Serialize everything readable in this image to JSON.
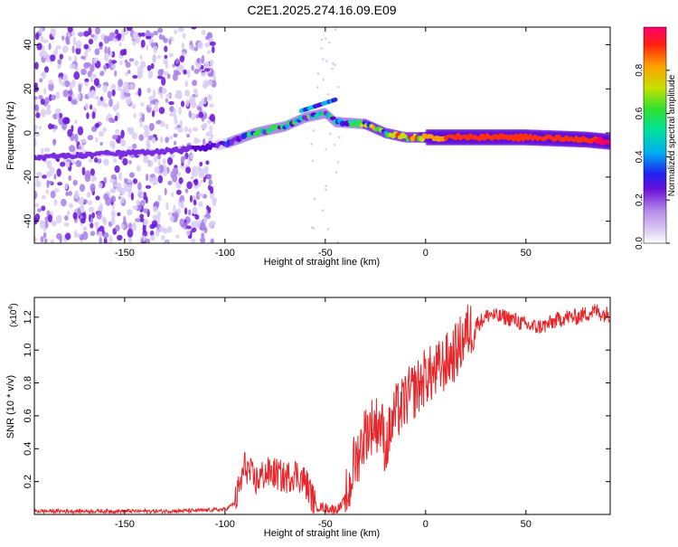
{
  "figure_title": "C2E1.2025.274.16.09.E09",
  "colorbar": {
    "label": "Normalized spectral amplitude",
    "ticks": [
      "0.0",
      "0.2",
      "0.4",
      "0.6",
      "0.8"
    ]
  },
  "chart_data": [
    {
      "type": "heatmap",
      "title": "C2E1.2025.274.16.09.E09",
      "xlabel": "Height of straight line (km)",
      "ylabel": "Frequency (Hz)",
      "xlim": [
        -195,
        92
      ],
      "ylim": [
        -50,
        48
      ],
      "xticks": [
        -150,
        -100,
        -50,
        0,
        50
      ],
      "yticks": [
        -40,
        -20,
        0,
        20,
        40
      ],
      "zlabel": "Normalized spectral amplitude",
      "zlim": [
        0,
        1
      ],
      "colormap": [
        "#ffffff",
        "#d9ccf5",
        "#a77ee8",
        "#7a2ce0",
        "#5a00d8",
        "#1f2cf0",
        "#00b4f0",
        "#00e0a0",
        "#30e040",
        "#c8e000",
        "#ffa000",
        "#ff3010",
        "#ff0060"
      ],
      "ridge": {
        "x": [
          -195,
          -170,
          -150,
          -140,
          -125,
          -115,
          -100,
          -85,
          -70,
          -60,
          -50,
          -45,
          -30,
          -20,
          -10,
          0,
          20,
          50,
          80,
          92
        ],
        "frequency_hz": [
          -11,
          -10,
          -9,
          -9,
          -8,
          -7,
          -5,
          0,
          3,
          7,
          9,
          5,
          4,
          0,
          -2,
          -2,
          -2,
          -2,
          -3,
          -4
        ],
        "amplitude": [
          0.2,
          0.2,
          0.2,
          0.15,
          0.2,
          0.3,
          0.35,
          0.45,
          0.55,
          0.5,
          0.45,
          0.5,
          0.6,
          0.65,
          0.8,
          0.85,
          0.9,
          0.92,
          0.95,
          0.97
        ]
      },
      "noise_region_x": [
        -195,
        -105
      ]
    },
    {
      "type": "line",
      "title": "",
      "xlabel": "Height of straight line (km)",
      "ylabel": "SNR (10 * v/v)",
      "exponent_label": "(x10",
      "exponent_value": "4",
      "exponent_close": ")",
      "xlim": [
        -195,
        92
      ],
      "ylim": [
        0,
        1.32
      ],
      "xticks": [
        -150,
        -100,
        -50,
        0,
        50
      ],
      "yticks": [
        "0.2",
        "0.4",
        "0.6",
        "0.8",
        "1.0",
        "1.2"
      ],
      "color": "#e8262a",
      "series": [
        {
          "name": "SNR",
          "x": [
            -195,
            -160,
            -130,
            -110,
            -100,
            -95,
            -92,
            -90,
            -85,
            -80,
            -75,
            -70,
            -65,
            -60,
            -57,
            -55,
            -50,
            -45,
            -42,
            -40,
            -38,
            -36,
            -34,
            -30,
            -26,
            -22,
            -20,
            -18,
            -15,
            -12,
            -10,
            -6,
            -2,
            0,
            4,
            8,
            12,
            16,
            20,
            24,
            28,
            32,
            36,
            40,
            45,
            50,
            55,
            60,
            65,
            70,
            75,
            80,
            85,
            88,
            92
          ],
          "y": [
            0.02,
            0.02,
            0.02,
            0.025,
            0.03,
            0.07,
            0.2,
            0.3,
            0.2,
            0.25,
            0.25,
            0.22,
            0.25,
            0.2,
            0.12,
            0.05,
            0.04,
            0.03,
            0.05,
            0.1,
            0.15,
            0.3,
            0.35,
            0.5,
            0.55,
            0.55,
            0.4,
            0.5,
            0.62,
            0.65,
            0.7,
            0.75,
            0.8,
            0.85,
            0.85,
            0.9,
            0.95,
            1.0,
            1.1,
            1.15,
            1.18,
            1.22,
            1.2,
            1.2,
            1.18,
            1.15,
            1.14,
            1.15,
            1.18,
            1.2,
            1.2,
            1.22,
            1.24,
            1.22,
            1.22
          ]
        }
      ]
    }
  ]
}
